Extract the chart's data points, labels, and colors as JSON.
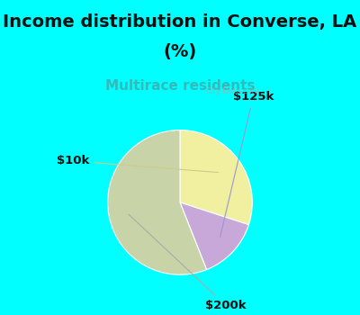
{
  "title_line1": "Income distribution in Converse, LA",
  "title_line2": "(%)",
  "subtitle": "Multirace residents",
  "slices": [
    {
      "label": "$10k",
      "value": 30,
      "color": "#f0f0a0"
    },
    {
      "label": "$125k",
      "value": 14,
      "color": "#c8a8d8"
    },
    {
      "label": "$200k",
      "value": 56,
      "color": "#c8d4a8"
    }
  ],
  "title_fontsize": 14,
  "subtitle_fontsize": 11,
  "subtitle_color": "#33bbbb",
  "bg_cyan": "#00ffff",
  "bg_chart_color": "#d8ede4",
  "label_fontsize": 9.5,
  "watermark": "City-Data.com",
  "title_color": "#111111",
  "label_color": "#111111",
  "arrow_125k_color": "#9999cc",
  "arrow_10k_color": "#cccc88",
  "arrow_200k_color": "#aaaaaa"
}
